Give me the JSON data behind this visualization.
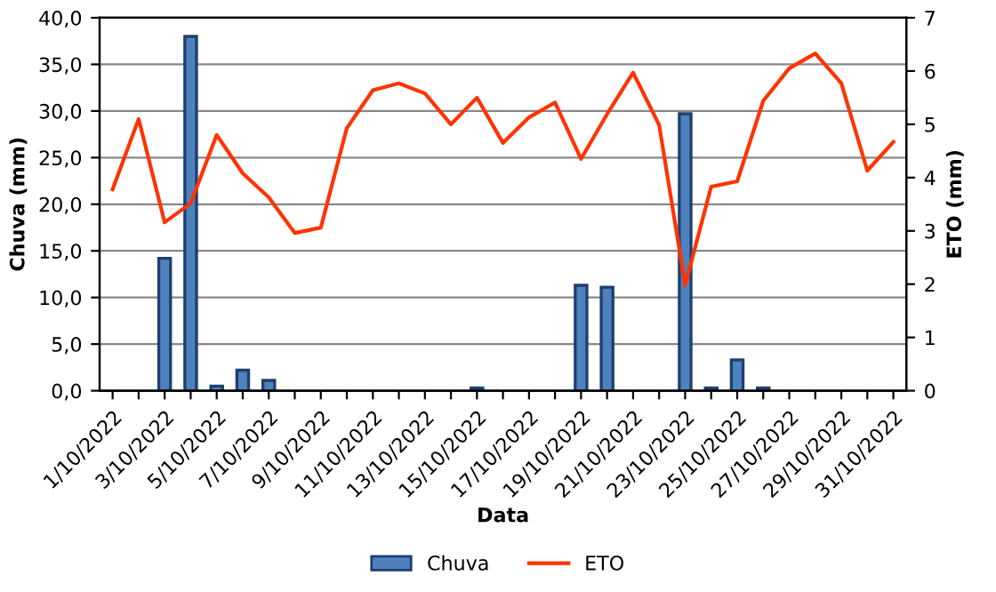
{
  "chart_data": {
    "type": "bar",
    "xlabel": "Data",
    "ylabel": "Chuva (mm)",
    "y2label": "ETO (mm)",
    "categories": [
      "1/10/2022",
      null,
      "3/10/2022",
      null,
      "5/10/2022",
      null,
      "7/10/2022",
      null,
      "9/10/2022",
      null,
      "11/10/2022",
      null,
      "13/10/2022",
      null,
      "15/10/2022",
      null,
      "17/10/2022",
      null,
      "19/10/2022",
      null,
      "21/10/2022",
      null,
      "23/10/2022",
      null,
      "25/10/2022",
      null,
      "27/10/2022",
      null,
      "29/10/2022",
      null,
      "31/10/2022"
    ],
    "series": [
      {
        "name": "Chuva",
        "color": "#4f81bd",
        "values": [
          0,
          0,
          14.2,
          38.0,
          0.5,
          2.2,
          1.1,
          0,
          0,
          0,
          0,
          0,
          0,
          0,
          0.3,
          0,
          0,
          0,
          11.3,
          11.1,
          0,
          0,
          29.7,
          0.3,
          3.3,
          0.3,
          0,
          0,
          0,
          0,
          0
        ]
      },
      {
        "name": "ETO",
        "type": "line",
        "axis": "y2",
        "color": "#ff3300",
        "values": [
          3.78,
          5.1,
          3.16,
          3.52,
          4.8,
          4.08,
          3.63,
          2.96,
          3.06,
          4.93,
          5.64,
          5.77,
          5.58,
          5.0,
          5.5,
          4.65,
          5.13,
          5.41,
          4.35,
          5.19,
          5.97,
          4.99,
          1.98,
          3.83,
          3.93,
          5.44,
          6.05,
          6.33,
          5.77,
          4.13,
          4.67
        ]
      }
    ],
    "ylim": [
      0,
      40
    ],
    "yticks": [
      {
        "value": 0,
        "label": "0,0"
      },
      {
        "value": 5,
        "label": "5,0"
      },
      {
        "value": 10,
        "label": "10,0"
      },
      {
        "value": 15,
        "label": "15,0"
      },
      {
        "value": 20,
        "label": "20,0"
      },
      {
        "value": 25,
        "label": "25,0"
      },
      {
        "value": 30,
        "label": "30,0"
      },
      {
        "value": 35,
        "label": "35,0"
      },
      {
        "value": 40,
        "label": "40,0"
      }
    ],
    "y2lim": [
      0,
      7
    ],
    "y2ticks": [
      0,
      1,
      2,
      3,
      4,
      5,
      6,
      7
    ],
    "grid": "y",
    "legend": "bottom"
  }
}
